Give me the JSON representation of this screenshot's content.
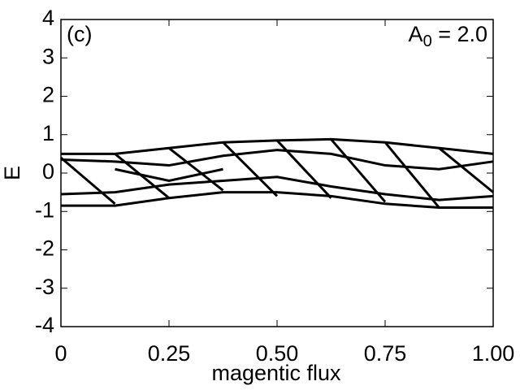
{
  "chart_data": {
    "type": "line",
    "x_label": "magentic flux",
    "y_label": "E",
    "panel_label": "(c)",
    "annotation": {
      "base": "A",
      "subscript": "0",
      "tail": " = 2.0"
    },
    "xlim": [
      0,
      1
    ],
    "ylim": [
      -4,
      4
    ],
    "xticks": [
      0,
      0.25,
      {
        "value": 0.5,
        "label": "0.50"
      },
      0.75,
      {
        "value": 1,
        "label": "1.00"
      }
    ],
    "yticks": [
      -4,
      -3,
      -2,
      -1,
      0,
      1,
      2,
      3,
      4
    ],
    "color": "#000000",
    "series": [
      {
        "x": [
          0,
          0.125,
          0.25,
          0.375,
          0.5,
          0.625,
          0.75,
          0.875,
          1
        ],
        "values": [
          0.5,
          0.5,
          0.65,
          0.8,
          0.85,
          0.88,
          0.8,
          0.65,
          0.5
        ]
      },
      {
        "x": [
          0,
          0.125,
          0.25,
          0.375,
          0.5,
          0.625,
          0.75,
          0.875,
          1
        ],
        "values": [
          -0.85,
          -0.85,
          -0.65,
          -0.5,
          -0.5,
          -0.6,
          -0.8,
          -0.9,
          -0.9
        ]
      },
      {
        "x": [
          0,
          0.125
        ],
        "values": [
          0.4,
          -0.8
        ]
      },
      {
        "x": [
          0.125,
          0.25
        ],
        "values": [
          0.5,
          -0.65
        ]
      },
      {
        "x": [
          0.25,
          0.375
        ],
        "values": [
          0.65,
          -0.45
        ]
      },
      {
        "x": [
          0.375,
          0.5
        ],
        "values": [
          0.8,
          -0.6
        ]
      },
      {
        "x": [
          0.5,
          0.625
        ],
        "values": [
          0.85,
          -0.65
        ]
      },
      {
        "x": [
          0.625,
          0.75
        ],
        "values": [
          0.88,
          -0.75
        ]
      },
      {
        "x": [
          0.75,
          0.875
        ],
        "values": [
          0.8,
          -0.9
        ]
      },
      {
        "x": [
          0.875,
          1
        ],
        "values": [
          0.65,
          -0.5
        ]
      },
      {
        "x": [
          0,
          0.125,
          0.25,
          0.375,
          0.5,
          0.625,
          0.75,
          0.875,
          1
        ],
        "values": [
          0.35,
          0.3,
          0.2,
          0.45,
          0.6,
          0.5,
          0.2,
          0.1,
          0.3
        ]
      },
      {
        "x": [
          0,
          0.125,
          0.25,
          0.375,
          0.5,
          0.625,
          0.75,
          0.875,
          1
        ],
        "values": [
          -0.55,
          -0.5,
          -0.3,
          -0.2,
          -0.1,
          -0.35,
          -0.55,
          -0.7,
          -0.6
        ]
      },
      {
        "x": [
          0.125,
          0.25,
          0.375
        ],
        "values": [
          0.1,
          -0.2,
          0.1
        ]
      }
    ]
  }
}
